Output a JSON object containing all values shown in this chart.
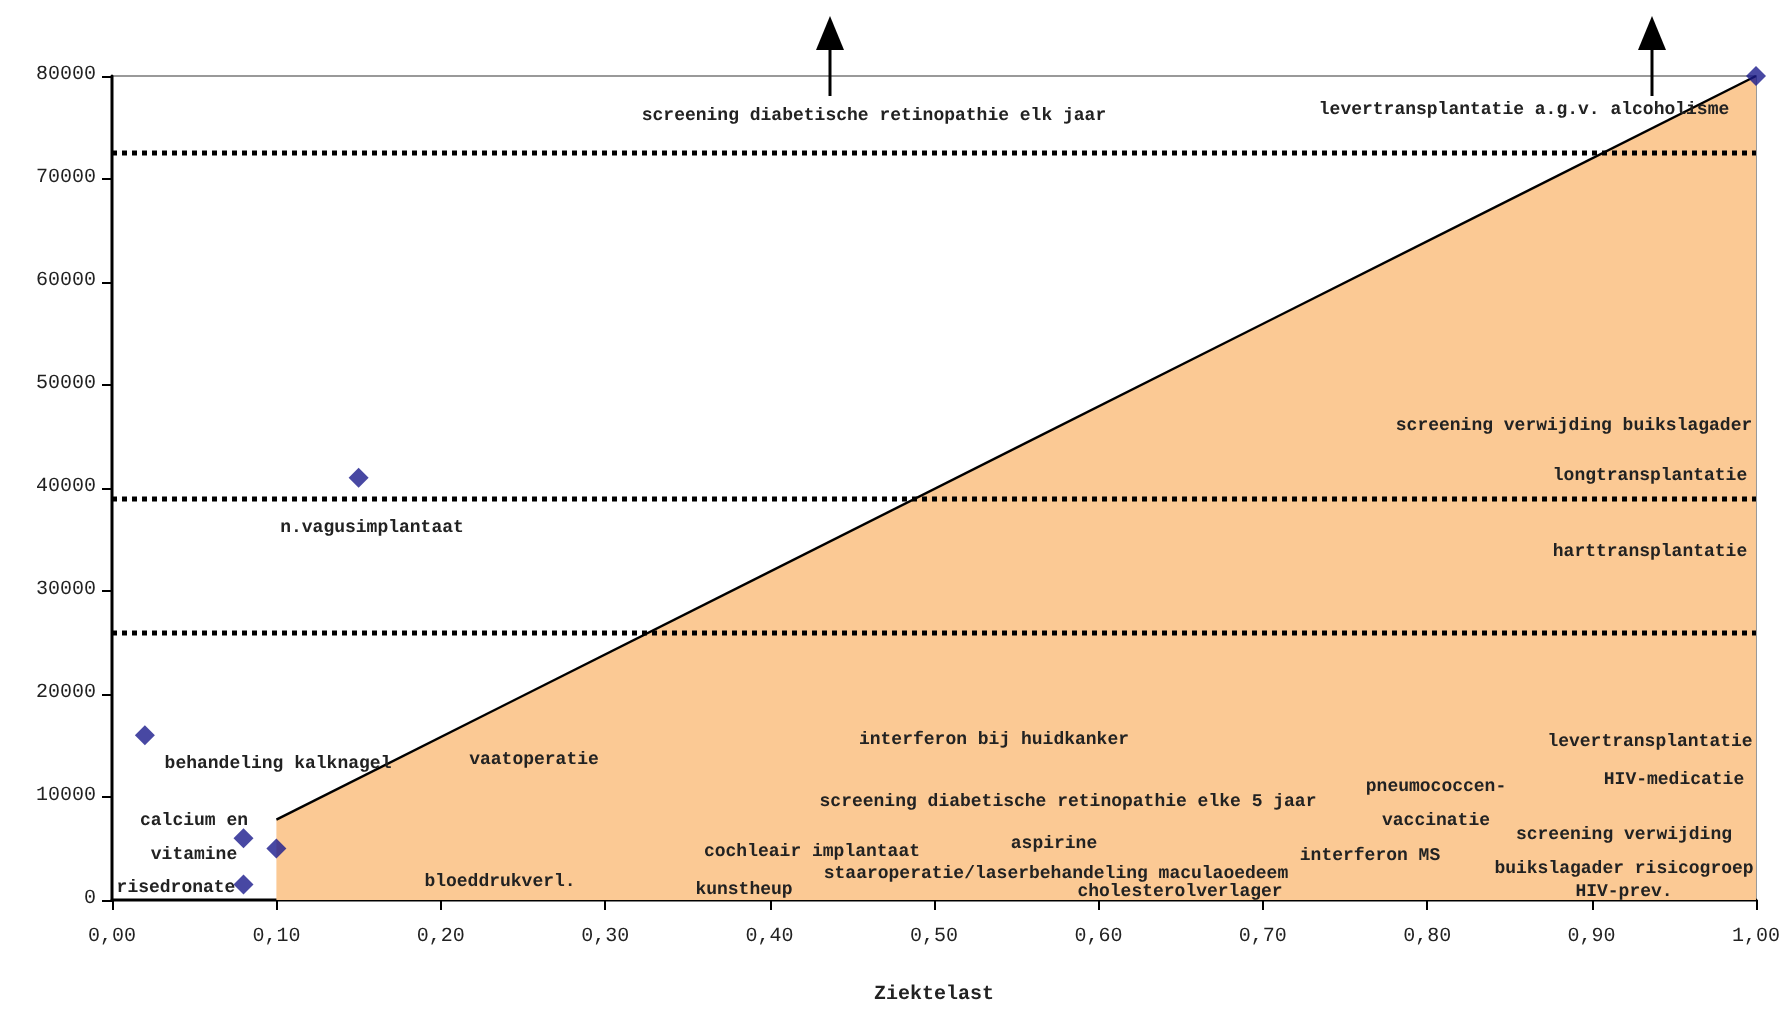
{
  "chart_data": {
    "type": "scatter",
    "xlabel": "Ziektelast",
    "marker": "diamond",
    "xlim": [
      0,
      1
    ],
    "ylim": [
      0,
      80000
    ],
    "xticks": [
      {
        "value": 0,
        "label": "0,00"
      },
      {
        "value": 0.1,
        "label": "0,10"
      },
      {
        "value": 0.2,
        "label": "0,20"
      },
      {
        "value": 0.3,
        "label": "0,30"
      },
      {
        "value": 0.4,
        "label": "0,40"
      },
      {
        "value": 0.5,
        "label": "0,50"
      },
      {
        "value": 0.6,
        "label": "0,60"
      },
      {
        "value": 0.7,
        "label": "0,70"
      },
      {
        "value": 0.8,
        "label": "0,80"
      },
      {
        "value": 0.9,
        "label": "0,90"
      },
      {
        "value": 1,
        "label": "1,00"
      }
    ],
    "yticks": [
      0,
      10000,
      20000,
      30000,
      40000,
      50000,
      60000,
      70000,
      80000
    ],
    "series": [
      {
        "color": "#1a1a8c",
        "x": [
          0.02,
          0.08,
          0.08,
          0.1,
          0.15,
          1.0
        ],
        "values": [
          16000,
          6000,
          1500,
          5000,
          41000,
          80000
        ]
      },
      {
        "type": "area",
        "marker": "none",
        "color": "#fbc994",
        "x": [
          0.1,
          1.0
        ],
        "values": [
          7800,
          80000
        ]
      }
    ],
    "ref_lines": [
      {
        "axis": "y",
        "value": 72500,
        "line_style": "dotted"
      },
      {
        "axis": "y",
        "value": 39000,
        "line_style": "dotted"
      },
      {
        "axis": "y",
        "value": 26000,
        "line_style": "dotted"
      }
    ],
    "annotations": [
      "screening diabetische retinopathie elk jaar",
      "levertransplantatie a.g.v. alcoholisme",
      "n.vagusimplantaat",
      "screening verwijding buikslagader",
      "longtransplantatie",
      "harttransplantatie",
      "behandeling kalknagel",
      "vaatoperatie",
      "interferon bij huidkanker",
      "levertransplantatie",
      "HIV-medicatie",
      "calcium en\nvitamine",
      "risedronate",
      "bloeddrukverl.",
      "kunstheup",
      "cochleair implantaat",
      "screening diabetische retinopathie elke 5 jaar",
      "aspirine",
      "staaroperatie/laserbehandeling maculaoedeem",
      "cholesterolverlager",
      "pneumococcen-\nvaccinatie",
      "interferon MS",
      "screening verwijding\nbuikslagader risicogroep",
      "HIV-prev."
    ]
  }
}
